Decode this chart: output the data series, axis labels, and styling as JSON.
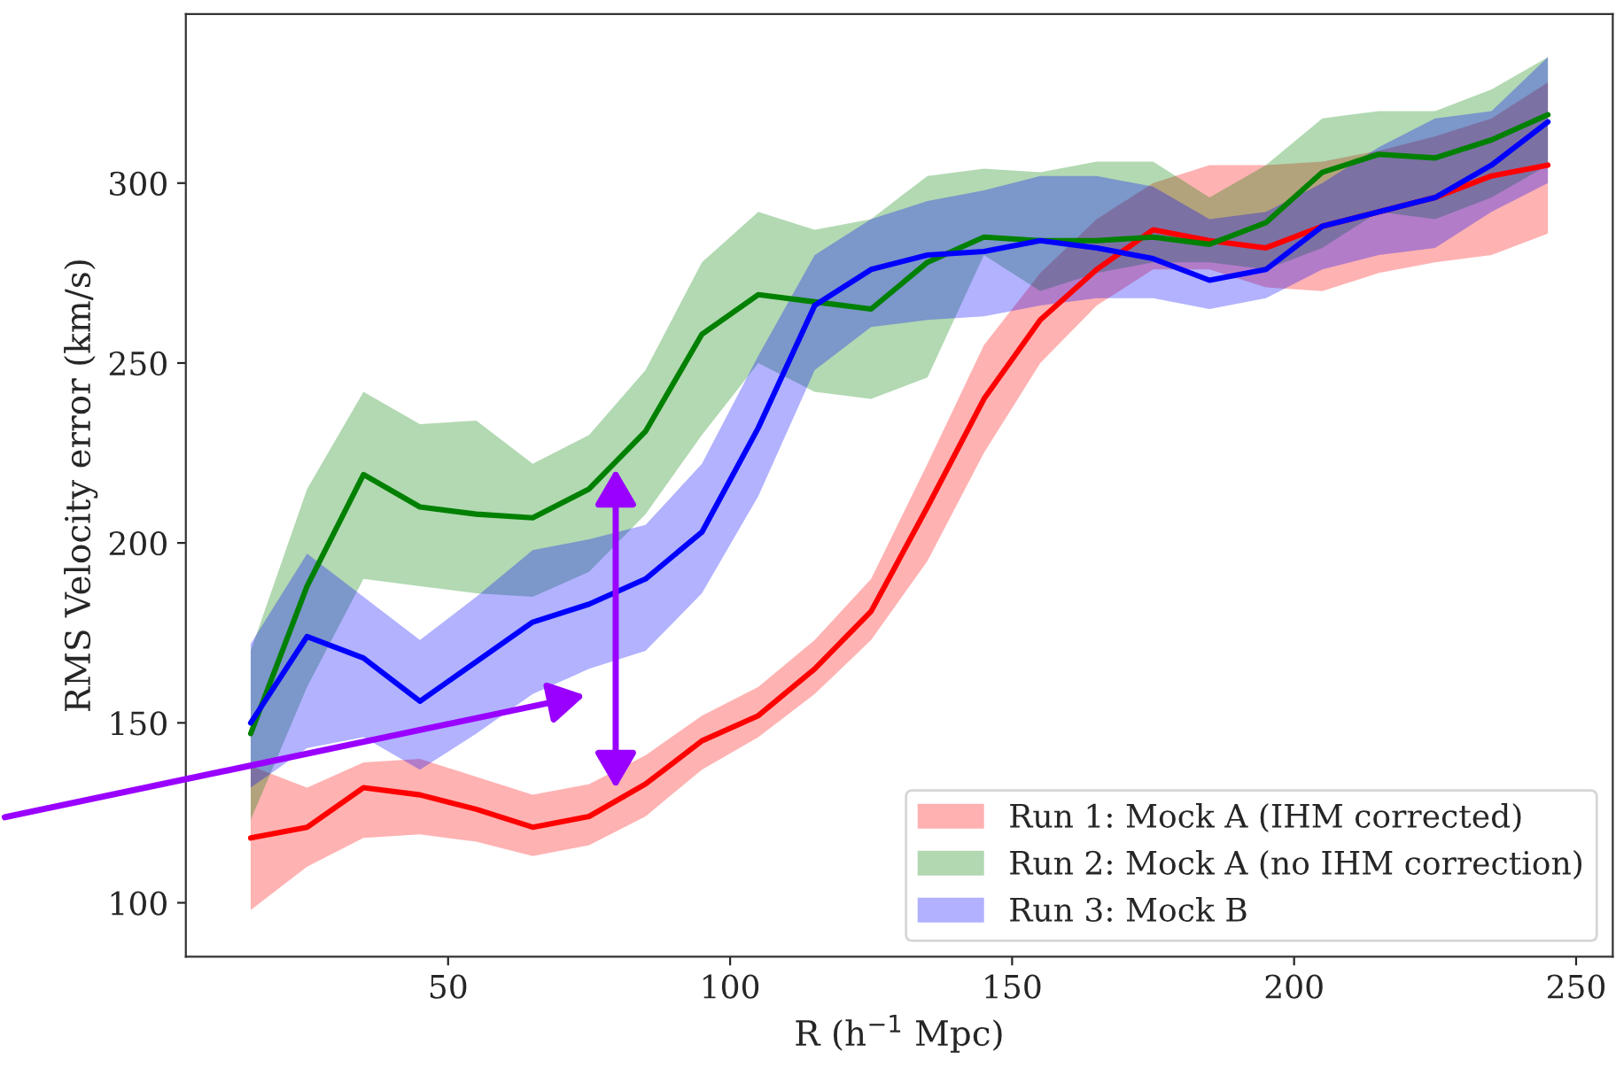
{
  "chart_data": {
    "type": "line",
    "xlabel": "R (h$^{−1}$ Mpc)",
    "ylabel": "RMS Velocity error (km/s)",
    "x": [
      15,
      25,
      35,
      45,
      55,
      65,
      75,
      85,
      95,
      105,
      115,
      125,
      135,
      145,
      155,
      165,
      175,
      185,
      195,
      205,
      215,
      225,
      235,
      245
    ],
    "series": [
      {
        "name": "Run 1: Mock A (IHM corrected)",
        "color": "#ff0000",
        "values": [
          118,
          121,
          132,
          130,
          126,
          121,
          124,
          133,
          145,
          152,
          165,
          181,
          210,
          240,
          262,
          276,
          287,
          284,
          282,
          288,
          292,
          296,
          302,
          305
        ],
        "lower": [
          98,
          110,
          118,
          119,
          117,
          113,
          116,
          124,
          137,
          146,
          158,
          173,
          195,
          225,
          250,
          266,
          276,
          276,
          271,
          270,
          275,
          278,
          280,
          286
        ],
        "upper": [
          138,
          132,
          139,
          140,
          135,
          130,
          133,
          141,
          152,
          160,
          173,
          190,
          222,
          255,
          275,
          290,
          300,
          305,
          305,
          306,
          309,
          313,
          318,
          328
        ]
      },
      {
        "name": "Run 2: Mock A (no IHM correction)",
        "color": "#008000",
        "values": [
          147,
          188,
          219,
          210,
          208,
          207,
          215,
          231,
          258,
          269,
          267,
          265,
          278,
          285,
          284,
          284,
          285,
          283,
          289,
          303,
          308,
          307,
          312,
          319
        ],
        "lower": [
          123,
          160,
          190,
          188,
          186,
          185,
          192,
          208,
          230,
          250,
          242,
          240,
          246,
          280,
          270,
          275,
          278,
          278,
          276,
          282,
          292,
          290,
          296,
          305
        ],
        "upper": [
          170,
          215,
          242,
          233,
          234,
          222,
          230,
          248,
          278,
          292,
          287,
          290,
          302,
          304,
          303,
          306,
          306,
          296,
          305,
          318,
          320,
          320,
          326,
          335
        ]
      },
      {
        "name": "Run 3: Mock B",
        "color": "#0000ff",
        "values": [
          150,
          174,
          168,
          156,
          167,
          178,
          183,
          190,
          203,
          232,
          266,
          276,
          280,
          281,
          284,
          282,
          279,
          273,
          276,
          288,
          292,
          296,
          305,
          317
        ],
        "lower": [
          132,
          143,
          146,
          137,
          147,
          158,
          165,
          170,
          186,
          213,
          248,
          260,
          262,
          263,
          266,
          268,
          268,
          265,
          268,
          276,
          280,
          282,
          292,
          300
        ],
        "upper": [
          172,
          197,
          185,
          173,
          185,
          198,
          201,
          205,
          222,
          252,
          280,
          290,
          295,
          298,
          302,
          302,
          299,
          290,
          292,
          300,
          310,
          318,
          320,
          335
        ]
      }
    ],
    "xlim": [
      3.5,
      256.5
    ],
    "ylim": [
      85,
      347
    ],
    "xticks": [
      50,
      100,
      150,
      200,
      250
    ],
    "yticks": [
      100,
      150,
      200,
      250,
      300
    ],
    "grid": false,
    "legend": "bottom right"
  }
}
